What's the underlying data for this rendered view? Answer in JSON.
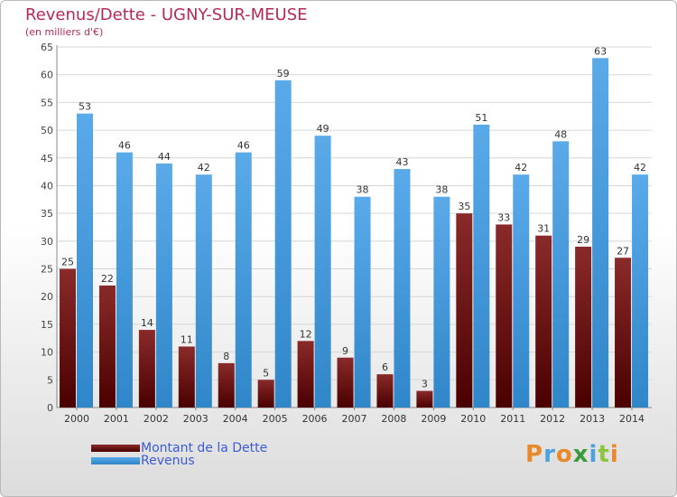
{
  "title": "Revenus/Dette - UGNY-SUR-MEUSE",
  "subtitle": "(en milliers d'€)",
  "colors": {
    "dette_top": "#8a2a2a",
    "dette_bottom": "#4a0000",
    "revenus_top": "#5aaaea",
    "revenus_bottom": "#2f86c8",
    "title": "#b4285a",
    "legend_text": "#3b5bd6"
  },
  "chart_data": {
    "type": "bar",
    "title": "Revenus/Dette - UGNY-SUR-MEUSE",
    "subtitle": "(en milliers d'€)",
    "categories": [
      "2000",
      "2001",
      "2002",
      "2003",
      "2004",
      "2005",
      "2006",
      "2007",
      "2008",
      "2009",
      "2010",
      "2011",
      "2012",
      "2013",
      "2014"
    ],
    "series": [
      {
        "name": "Montant de la Dette",
        "values": [
          25,
          22,
          14,
          11,
          8,
          5,
          12,
          9,
          6,
          3,
          35,
          33,
          31,
          29,
          27
        ]
      },
      {
        "name": "Revenus",
        "values": [
          53,
          46,
          44,
          42,
          46,
          59,
          49,
          38,
          43,
          38,
          51,
          42,
          48,
          63,
          42
        ]
      }
    ],
    "yticks": [
      "0",
      "5",
      "10",
      "15",
      "20",
      "25",
      "30",
      "35",
      "40",
      "45",
      "50",
      "55",
      "60",
      "65"
    ],
    "ylim": [
      0,
      65
    ],
    "grid": true,
    "legend": "bottom-left"
  },
  "legend": [
    {
      "label": "Montant de la Dette"
    },
    {
      "label": "Revenus"
    }
  ],
  "logo": {
    "text": "Proxiti",
    "letters": [
      "P",
      "r",
      "o",
      "x",
      "i",
      "t",
      "i"
    ],
    "letter_colors": [
      "#e8892a",
      "#4aa3df",
      "#e8892a",
      "#3a9a3a",
      "#4aa3df",
      "#8cc63f",
      "#e8892a"
    ]
  }
}
